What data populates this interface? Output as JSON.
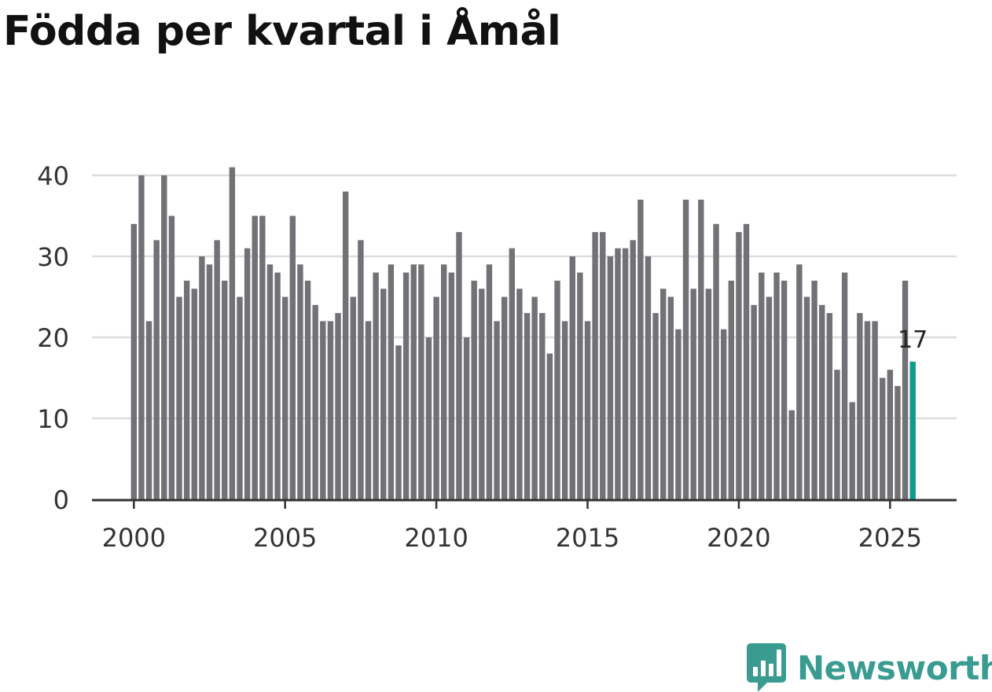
{
  "chart_data": {
    "type": "bar",
    "title": "Födda per kvartal i Åmål",
    "xlabel": "",
    "ylabel": "",
    "ylim": [
      0,
      41
    ],
    "yticks": [
      0,
      10,
      20,
      30,
      40
    ],
    "x_tick_labels": [
      "2000",
      "2005",
      "2010",
      "2015",
      "2020",
      "2025"
    ],
    "x_start_year": 2000,
    "grid": true,
    "bar_color": "#727176",
    "highlight_color": "#109a8c",
    "highlight_label": "17",
    "categories": [
      "2000 Q1",
      "2000 Q2",
      "2000 Q3",
      "2000 Q4",
      "2001 Q1",
      "2001 Q2",
      "2001 Q3",
      "2001 Q4",
      "2002 Q1",
      "2002 Q2",
      "2002 Q3",
      "2002 Q4",
      "2003 Q1",
      "2003 Q2",
      "2003 Q3",
      "2003 Q4",
      "2004 Q1",
      "2004 Q2",
      "2004 Q3",
      "2004 Q4",
      "2005 Q1",
      "2005 Q2",
      "2005 Q3",
      "2005 Q4",
      "2006 Q1",
      "2006 Q2",
      "2006 Q3",
      "2006 Q4",
      "2007 Q1",
      "2007 Q2",
      "2007 Q3",
      "2007 Q4",
      "2008 Q1",
      "2008 Q2",
      "2008 Q3",
      "2008 Q4",
      "2009 Q1",
      "2009 Q2",
      "2009 Q3",
      "2009 Q4",
      "2010 Q1",
      "2010 Q2",
      "2010 Q3",
      "2010 Q4",
      "2011 Q1",
      "2011 Q2",
      "2011 Q3",
      "2011 Q4",
      "2012 Q1",
      "2012 Q2",
      "2012 Q3",
      "2012 Q4",
      "2013 Q1",
      "2013 Q2",
      "2013 Q3",
      "2013 Q4",
      "2014 Q1",
      "2014 Q2",
      "2014 Q3",
      "2014 Q4",
      "2015 Q1",
      "2015 Q2",
      "2015 Q3",
      "2015 Q4",
      "2016 Q1",
      "2016 Q2",
      "2016 Q3",
      "2016 Q4",
      "2017 Q1",
      "2017 Q2",
      "2017 Q3",
      "2017 Q4",
      "2018 Q1",
      "2018 Q2",
      "2018 Q3",
      "2018 Q4",
      "2019 Q1",
      "2019 Q2",
      "2019 Q3",
      "2019 Q4",
      "2020 Q1",
      "2020 Q2",
      "2020 Q3",
      "2020 Q4",
      "2021 Q1",
      "2021 Q2",
      "2021 Q3",
      "2021 Q4",
      "2022 Q1",
      "2022 Q2",
      "2022 Q3",
      "2022 Q4",
      "2023 Q1",
      "2023 Q2",
      "2023 Q3",
      "2023 Q4",
      "2024 Q1",
      "2024 Q2",
      "2024 Q3",
      "2024 Q4",
      "2025 Q1",
      "2025 Q2",
      "2025 Q3",
      "2025 Q4"
    ],
    "values": [
      34,
      40,
      22,
      32,
      40,
      35,
      25,
      27,
      26,
      30,
      29,
      32,
      27,
      41,
      25,
      31,
      35,
      35,
      29,
      28,
      25,
      35,
      29,
      27,
      24,
      22,
      22,
      23,
      38,
      25,
      32,
      22,
      28,
      26,
      29,
      19,
      28,
      29,
      29,
      20,
      25,
      29,
      28,
      33,
      20,
      27,
      26,
      29,
      22,
      25,
      31,
      26,
      23,
      25,
      23,
      18,
      27,
      22,
      30,
      28,
      22,
      33,
      33,
      30,
      31,
      31,
      32,
      37,
      30,
      23,
      26,
      25,
      21,
      37,
      26,
      37,
      26,
      34,
      21,
      27,
      33,
      34,
      24,
      28,
      25,
      28,
      27,
      11,
      29,
      25,
      27,
      24,
      23,
      16,
      28,
      12,
      23,
      22,
      22,
      15,
      16,
      14,
      27,
      17
    ]
  },
  "branding": {
    "name": "Newsworthy",
    "color": "#3a9b91"
  }
}
